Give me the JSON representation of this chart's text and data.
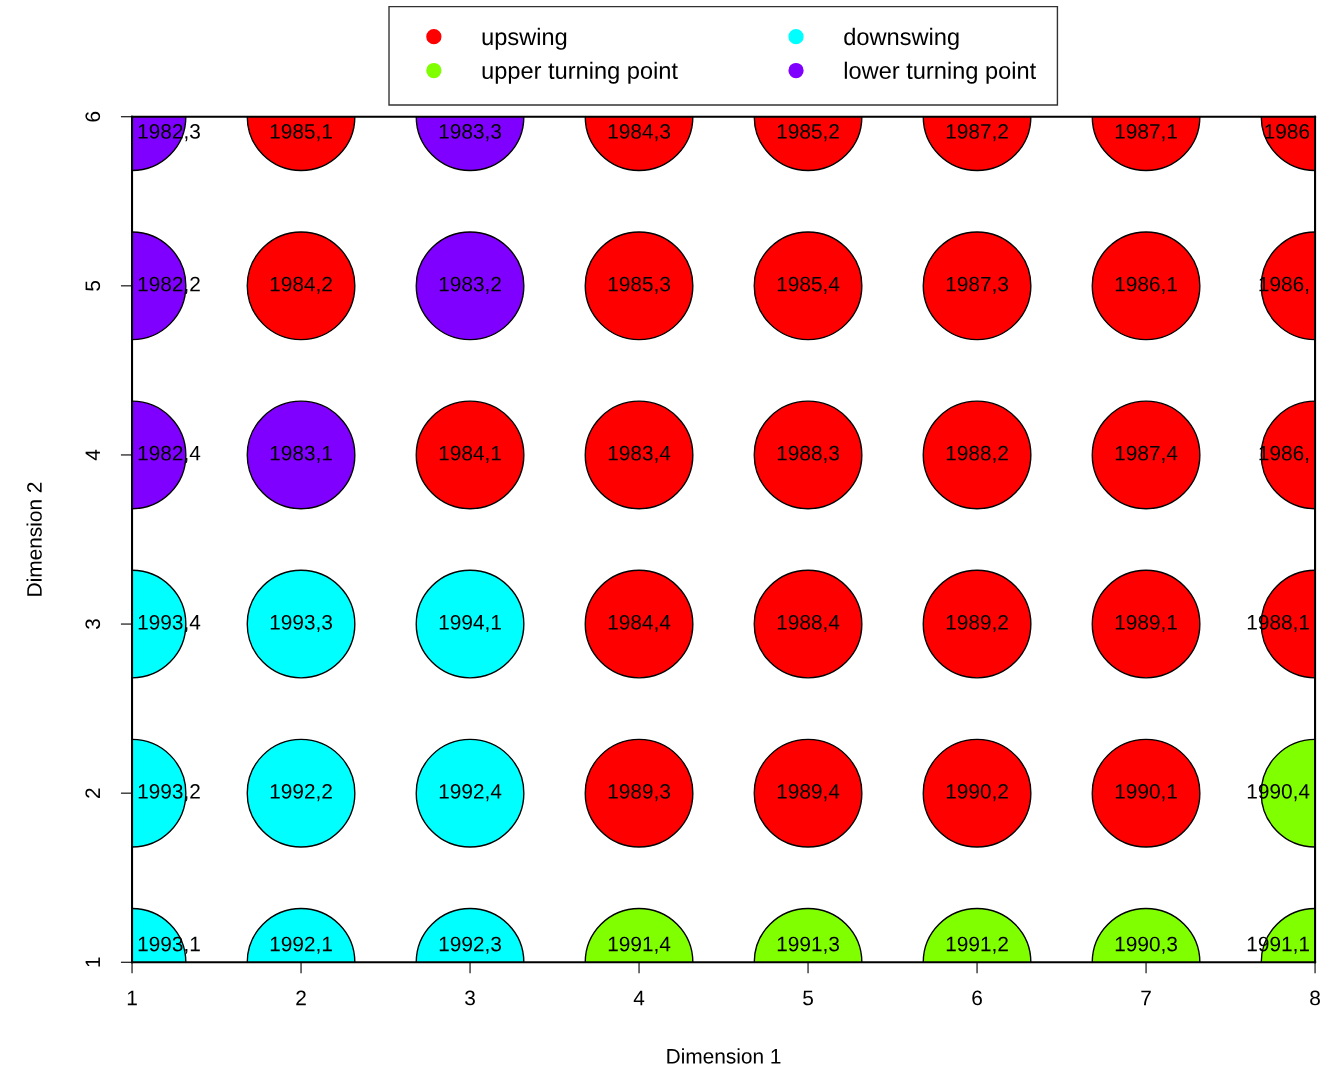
{
  "chart_data": {
    "type": "scatter",
    "xlabel": "Dimension 1",
    "ylabel": "Dimension 2",
    "xlim": [
      1,
      8
    ],
    "ylim": [
      1,
      6
    ],
    "xticks": [
      1,
      2,
      3,
      4,
      5,
      6,
      7,
      8
    ],
    "yticks": [
      1,
      2,
      3,
      4,
      5,
      6
    ],
    "grid": false,
    "legend": "top",
    "marker": "circle",
    "series": [
      {
        "name": "upswing",
        "color": "#ff0000",
        "x": [
          2,
          4,
          5,
          6,
          7,
          8,
          2,
          4,
          5,
          6,
          7,
          8,
          3,
          4,
          5,
          6,
          7,
          8,
          4,
          5,
          6,
          7,
          8,
          4,
          5,
          6,
          7
        ],
        "values": [
          6,
          6,
          6,
          6,
          6,
          6,
          5,
          5,
          5,
          5,
          5,
          5,
          4,
          4,
          4,
          4,
          4,
          4,
          3,
          3,
          3,
          3,
          3,
          2,
          2,
          2,
          2
        ]
      },
      {
        "name": "upper turning point",
        "color": "#80ff00",
        "x": [
          8,
          4,
          5,
          6,
          7,
          8
        ],
        "values": [
          2,
          1,
          1,
          1,
          1,
          1
        ]
      },
      {
        "name": "downswing",
        "color": "#00ffff",
        "x": [
          1,
          2,
          3,
          1,
          2,
          3,
          1,
          2,
          3
        ],
        "values": [
          3,
          3,
          3,
          2,
          2,
          2,
          1,
          1,
          1
        ]
      },
      {
        "name": "lower turning point",
        "color": "#8000ff",
        "x": [
          1,
          3,
          1,
          3,
          1,
          2
        ],
        "values": [
          6,
          6,
          5,
          5,
          4,
          4
        ]
      }
    ],
    "annotations": [
      {
        "text": "1982,3",
        "x": 1,
        "y": 6
      },
      {
        "text": "1985,1",
        "x": 2,
        "y": 6
      },
      {
        "text": "1983,3",
        "x": 3,
        "y": 6
      },
      {
        "text": "1984,3",
        "x": 4,
        "y": 6
      },
      {
        "text": "1985,2",
        "x": 5,
        "y": 6
      },
      {
        "text": "1987,2",
        "x": 6,
        "y": 6
      },
      {
        "text": "1987,1",
        "x": 7,
        "y": 6
      },
      {
        "text": "1986",
        "x": 8,
        "y": 6
      },
      {
        "text": "1982,2",
        "x": 1,
        "y": 5
      },
      {
        "text": "1984,2",
        "x": 2,
        "y": 5
      },
      {
        "text": "1983,2",
        "x": 3,
        "y": 5
      },
      {
        "text": "1985,3",
        "x": 4,
        "y": 5
      },
      {
        "text": "1985,4",
        "x": 5,
        "y": 5
      },
      {
        "text": "1987,3",
        "x": 6,
        "y": 5
      },
      {
        "text": "1986,1",
        "x": 7,
        "y": 5
      },
      {
        "text": "1986,",
        "x": 8,
        "y": 5
      },
      {
        "text": "1982,4",
        "x": 1,
        "y": 4
      },
      {
        "text": "1983,1",
        "x": 2,
        "y": 4
      },
      {
        "text": "1984,1",
        "x": 3,
        "y": 4
      },
      {
        "text": "1983,4",
        "x": 4,
        "y": 4
      },
      {
        "text": "1988,3",
        "x": 5,
        "y": 4
      },
      {
        "text": "1988,2",
        "x": 6,
        "y": 4
      },
      {
        "text": "1987,4",
        "x": 7,
        "y": 4
      },
      {
        "text": "1986,",
        "x": 8,
        "y": 4
      },
      {
        "text": "1993,4",
        "x": 1,
        "y": 3
      },
      {
        "text": "1993,3",
        "x": 2,
        "y": 3
      },
      {
        "text": "1994,1",
        "x": 3,
        "y": 3
      },
      {
        "text": "1984,4",
        "x": 4,
        "y": 3
      },
      {
        "text": "1988,4",
        "x": 5,
        "y": 3
      },
      {
        "text": "1989,2",
        "x": 6,
        "y": 3
      },
      {
        "text": "1989,1",
        "x": 7,
        "y": 3
      },
      {
        "text": "1988,1",
        "x": 8,
        "y": 3
      },
      {
        "text": "1993,2",
        "x": 1,
        "y": 2
      },
      {
        "text": "1992,2",
        "x": 2,
        "y": 2
      },
      {
        "text": "1992,4",
        "x": 3,
        "y": 2
      },
      {
        "text": "1989,3",
        "x": 4,
        "y": 2
      },
      {
        "text": "1989,4",
        "x": 5,
        "y": 2
      },
      {
        "text": "1990,2",
        "x": 6,
        "y": 2
      },
      {
        "text": "1990,1",
        "x": 7,
        "y": 2
      },
      {
        "text": "1990,4",
        "x": 8,
        "y": 2
      },
      {
        "text": "1993,1",
        "x": 1,
        "y": 1
      },
      {
        "text": "1992,1",
        "x": 2,
        "y": 1
      },
      {
        "text": "1992,3",
        "x": 3,
        "y": 1
      },
      {
        "text": "1991,4",
        "x": 4,
        "y": 1
      },
      {
        "text": "1991,3",
        "x": 5,
        "y": 1
      },
      {
        "text": "1991,2",
        "x": 6,
        "y": 1
      },
      {
        "text": "1990,3",
        "x": 7,
        "y": 1
      },
      {
        "text": "1991,1",
        "x": 8,
        "y": 1
      }
    ]
  }
}
